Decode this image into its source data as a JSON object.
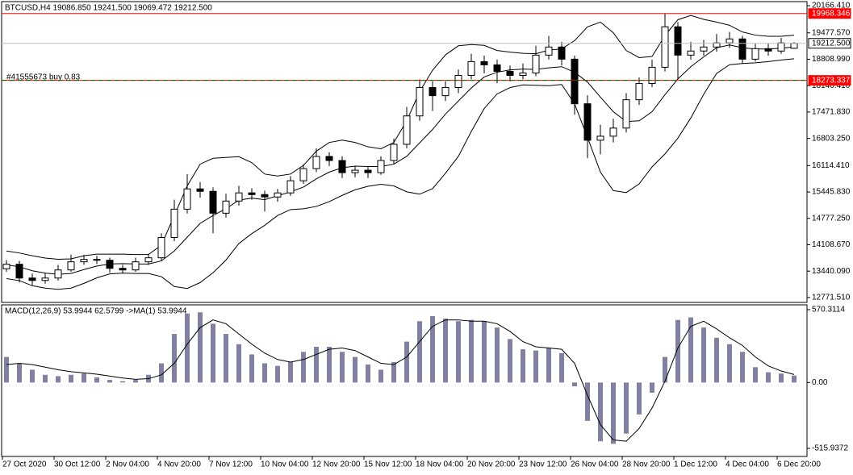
{
  "header": "BTCUSD,H4  19086.850 19241.500 19069.472 19212.500",
  "chart_data": [
    {
      "type": "candlestick",
      "annotation": "#41555673 buy 0.83",
      "categories": [
        "27 Oct 2020",
        null,
        null,
        null,
        "30 Oct 12:00",
        null,
        null,
        null,
        "2 Nov 04:00",
        null,
        null,
        null,
        "4 Nov 20:00",
        null,
        null,
        null,
        "7 Nov 12:00",
        null,
        null,
        null,
        "10 Nov 04:00",
        null,
        null,
        null,
        "12 Nov 20:00",
        null,
        null,
        null,
        "15 Nov 12:00",
        null,
        null,
        null,
        "18 Nov 04:00",
        null,
        null,
        null,
        "20 Nov 20:00",
        null,
        null,
        null,
        "23 Nov 12:00",
        null,
        null,
        null,
        "26 Nov 04:00",
        null,
        null,
        null,
        "28 Nov 20:00",
        null,
        null,
        null,
        "1 Dec 12:00",
        null,
        null,
        null,
        "4 Dec 04:00",
        null,
        null,
        null,
        "6 Dec 20:00",
        null
      ],
      "candles": [
        [
          13500,
          13720,
          13420,
          13614
        ],
        [
          13614,
          13700,
          13150,
          13265
        ],
        [
          13265,
          13380,
          13080,
          13203
        ],
        [
          13203,
          13390,
          13120,
          13265
        ],
        [
          13265,
          13600,
          13200,
          13470
        ],
        [
          13470,
          13860,
          13420,
          13676
        ],
        [
          13676,
          13850,
          13600,
          13737
        ],
        [
          13737,
          13830,
          13620,
          13716
        ],
        [
          13716,
          13780,
          13400,
          13511
        ],
        [
          13511,
          13600,
          13380,
          13470
        ],
        [
          13470,
          13780,
          13420,
          13676
        ],
        [
          13676,
          13880,
          13600,
          13778
        ],
        [
          13778,
          14400,
          13700,
          14292
        ],
        [
          14292,
          15250,
          14200,
          15010
        ],
        [
          15010,
          15900,
          14900,
          15524
        ],
        [
          15524,
          15700,
          15300,
          15462
        ],
        [
          15462,
          15560,
          14400,
          14908
        ],
        [
          14908,
          15400,
          14800,
          15216
        ],
        [
          15216,
          15600,
          15100,
          15422
        ],
        [
          15422,
          15540,
          15250,
          15380
        ],
        [
          15380,
          15480,
          14950,
          15319
        ],
        [
          15319,
          15520,
          15200,
          15422
        ],
        [
          15422,
          15850,
          15350,
          15730
        ],
        [
          15730,
          16150,
          15650,
          16038
        ],
        [
          16038,
          16550,
          15950,
          16346
        ],
        [
          16346,
          16450,
          16100,
          16243
        ],
        [
          16243,
          16350,
          15800,
          15935
        ],
        [
          15935,
          16100,
          15820,
          15997
        ],
        [
          15997,
          16080,
          15800,
          15935
        ],
        [
          15935,
          16350,
          15880,
          16243
        ],
        [
          16243,
          16800,
          16150,
          16654
        ],
        [
          16654,
          17600,
          16550,
          17373
        ],
        [
          17373,
          18300,
          17250,
          18092
        ],
        [
          18092,
          18250,
          17500,
          17886
        ],
        [
          17886,
          18250,
          17750,
          18092
        ],
        [
          18092,
          18550,
          17950,
          18400
        ],
        [
          18400,
          18950,
          18300,
          18749
        ],
        [
          18749,
          18900,
          18450,
          18667
        ],
        [
          18667,
          18800,
          18200,
          18503
        ],
        [
          18503,
          18650,
          18250,
          18400
        ],
        [
          18400,
          18700,
          18300,
          18461
        ],
        [
          18461,
          19150,
          18380,
          18914
        ],
        [
          18914,
          19400,
          18800,
          19119
        ],
        [
          19119,
          19250,
          18650,
          18811
        ],
        [
          18811,
          18900,
          17400,
          17681
        ],
        [
          17681,
          17900,
          16300,
          16757
        ],
        [
          16757,
          17150,
          16400,
          16859
        ],
        [
          16859,
          17300,
          16700,
          17065
        ],
        [
          17065,
          17950,
          16950,
          17783
        ],
        [
          17783,
          18350,
          17650,
          18195
        ],
        [
          18195,
          18800,
          18100,
          18606
        ],
        [
          18606,
          19968,
          18500,
          19632
        ],
        [
          19632,
          19750,
          18300,
          18914
        ],
        [
          18914,
          19250,
          18800,
          19017
        ],
        [
          19017,
          19300,
          18900,
          19119
        ],
        [
          19119,
          19450,
          19000,
          19222
        ],
        [
          19222,
          19500,
          19100,
          19324
        ],
        [
          19324,
          19400,
          18700,
          18811
        ],
        [
          18811,
          19200,
          18750,
          19078
        ],
        [
          19078,
          19200,
          18900,
          19017
        ],
        [
          19017,
          19350,
          18950,
          19222
        ],
        [
          19086.85,
          19241.5,
          19069.472,
          19212.5
        ]
      ],
      "series": [
        {
          "color": "#000000",
          "values": [
            13950,
            13900,
            13830,
            13770,
            13740,
            13750,
            13830,
            13870,
            13870,
            13870,
            13860,
            13860,
            14100,
            14850,
            15600,
            16150,
            16300,
            16320,
            16340,
            16190,
            15900,
            15850,
            15900,
            16120,
            16480,
            16700,
            16760,
            16700,
            16590,
            16540,
            16700,
            17250,
            17990,
            18530,
            18920,
            19150,
            19180,
            19160,
            19030,
            18990,
            18960,
            18950,
            19040,
            19070,
            19280,
            19630,
            19750,
            19480,
            19030,
            18850,
            18880,
            19410,
            19810,
            19920,
            19820,
            19750,
            19670,
            19500,
            19420,
            19390,
            19390,
            19420
          ]
        },
        {
          "color": "#000000",
          "values": [
            13600,
            13550,
            13450,
            13390,
            13360,
            13380,
            13480,
            13570,
            13620,
            13630,
            13620,
            13620,
            13700,
            13950,
            14300,
            14650,
            14850,
            15020,
            15240,
            15290,
            15250,
            15350,
            15450,
            15570,
            15780,
            15950,
            16060,
            16100,
            16090,
            16090,
            16150,
            16350,
            16690,
            17030,
            17420,
            17750,
            18080,
            18360,
            18480,
            18540,
            18560,
            18550,
            18590,
            18620,
            18480,
            18230,
            17850,
            17480,
            17230,
            17250,
            17480,
            17910,
            18310,
            18620,
            18870,
            19100,
            19170,
            19100,
            19070,
            19070,
            19090,
            19120
          ]
        },
        {
          "color": "#000000",
          "values": [
            13250,
            13200,
            13070,
            13010,
            12980,
            13010,
            13130,
            13270,
            13370,
            13390,
            13380,
            13380,
            13300,
            13050,
            13000,
            13150,
            13400,
            13720,
            14140,
            14390,
            14600,
            14850,
            15000,
            15020,
            15080,
            15200,
            15360,
            15500,
            15590,
            15640,
            15600,
            15450,
            15390,
            15530,
            15920,
            16350,
            16980,
            17560,
            17930,
            18090,
            18160,
            18150,
            18140,
            18170,
            17680,
            16830,
            15950,
            15480,
            15430,
            15650,
            16080,
            16410,
            16810,
            17320,
            17920,
            18450,
            18670,
            18700,
            18720,
            18750,
            18790,
            18820
          ]
        }
      ],
      "levels": [
        {
          "value": 19968.346,
          "label": "19968.346",
          "color": "#ff0000"
        },
        {
          "value": 19212.5,
          "label": "19212.500",
          "color": "#c0c0c0"
        },
        {
          "value": 18273.337,
          "label": "18273.337",
          "color": "#ff0000",
          "dash": "#006400"
        }
      ],
      "ylim": [
        12647,
        20249
      ],
      "yticks": [
        {
          "value": 20166.41,
          "label": "20166.410"
        },
        {
          "value": 19477.57,
          "label": "19477.570"
        },
        {
          "value": 18808.99,
          "label": "18808.990"
        },
        {
          "value": 18140.41,
          "label": "18140.410"
        },
        {
          "value": 17471.83,
          "label": "17471.830"
        },
        {
          "value": 16803.25,
          "label": "16803.250"
        },
        {
          "value": 16114.41,
          "label": "16114.410"
        },
        {
          "value": 15445.83,
          "label": "15445.830"
        },
        {
          "value": 14777.25,
          "label": "14777.250"
        },
        {
          "value": 14108.67,
          "label": "14108.670"
        },
        {
          "value": 13440.09,
          "label": "13440.090"
        },
        {
          "value": 12771.51,
          "label": "12771.510"
        }
      ],
      "up_color": "#ffffff",
      "down_color": "#000000"
    },
    {
      "type": "macd",
      "title": "MACD(12,26,9) 53.9944 62.5799  ->MA(1) 53.9944",
      "values": [
        200,
        150,
        100,
        60,
        50,
        60,
        70,
        40,
        20,
        10,
        20,
        60,
        150,
        380,
        540,
        550,
        460,
        380,
        300,
        220,
        150,
        130,
        160,
        240,
        280,
        280,
        240,
        200,
        140,
        100,
        160,
        320,
        480,
        520,
        500,
        480,
        490,
        480,
        430,
        340,
        260,
        250,
        270,
        230,
        -30,
        -300,
        -460,
        -480,
        -400,
        -250,
        -80,
        200,
        490,
        510,
        430,
        350,
        300,
        240,
        120,
        80,
        70,
        53.9944
      ],
      "signal": [
        140,
        150,
        140,
        120,
        100,
        85,
        75,
        65,
        50,
        35,
        25,
        30,
        60,
        150,
        300,
        430,
        490,
        460,
        380,
        300,
        230,
        180,
        160,
        180,
        220,
        260,
        270,
        250,
        200,
        150,
        140,
        200,
        320,
        440,
        490,
        490,
        480,
        480,
        460,
        400,
        320,
        280,
        270,
        260,
        150,
        -100,
        -330,
        -450,
        -460,
        -360,
        -200,
        10,
        270,
        440,
        480,
        420,
        350,
        290,
        200,
        130,
        90,
        62.5799
      ],
      "color": "#8080a0",
      "signal_color": "#000000",
      "ylim": [
        -579,
        608
      ],
      "yticks": [
        570.3114,
        {
          "value": 0,
          "label": "0.00"
        },
        -515.9372
      ]
    }
  ]
}
